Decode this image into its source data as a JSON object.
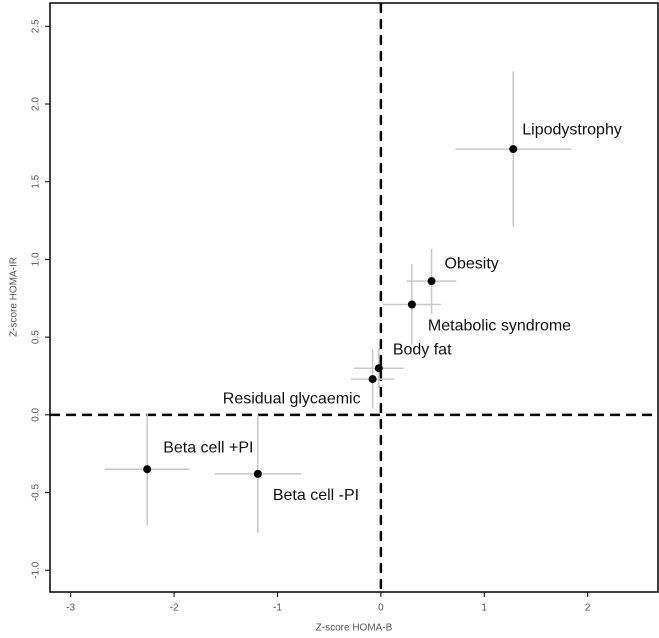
{
  "chart_data": {
    "type": "scatter",
    "xlabel": "Z-score HOMA-B",
    "ylabel": "Z-score HOMA-IR",
    "labels": [
      "Lipodystrophy",
      "Obesity",
      "Metabolic syndrome",
      "Body fat",
      "Residual glycaemic",
      "Beta cell +PI",
      "Beta cell -PI"
    ],
    "x": [
      1.28,
      0.49,
      0.3,
      -0.02,
      -0.08,
      -2.26,
      -1.19
    ],
    "y": [
      1.71,
      0.86,
      0.71,
      0.3,
      0.23,
      -0.35,
      -0.38
    ],
    "xerr": [
      0.56,
      0.24,
      0.28,
      0.24,
      0.21,
      0.41,
      0.42
    ],
    "yerr": [
      0.5,
      0.21,
      0.26,
      0.13,
      0.19,
      0.36,
      0.38
    ],
    "color": "#000000",
    "errcolor": "#c8c8c8",
    "xlim": [
      -3.2,
      2.68
    ],
    "ylim": [
      -1.14,
      2.65
    ],
    "xticks": [
      -3,
      -2,
      -1,
      0,
      1,
      2
    ],
    "yticks": [
      {
        "value": -1,
        "label": "-1.0"
      },
      -0.5,
      {
        "value": 0,
        "label": "0.0"
      },
      0.5,
      {
        "value": 1,
        "label": "1.0"
      },
      1.5,
      {
        "value": 2,
        "label": "2.0"
      },
      2.5
    ],
    "vlines": [
      0
    ],
    "hlines": [
      0
    ]
  }
}
